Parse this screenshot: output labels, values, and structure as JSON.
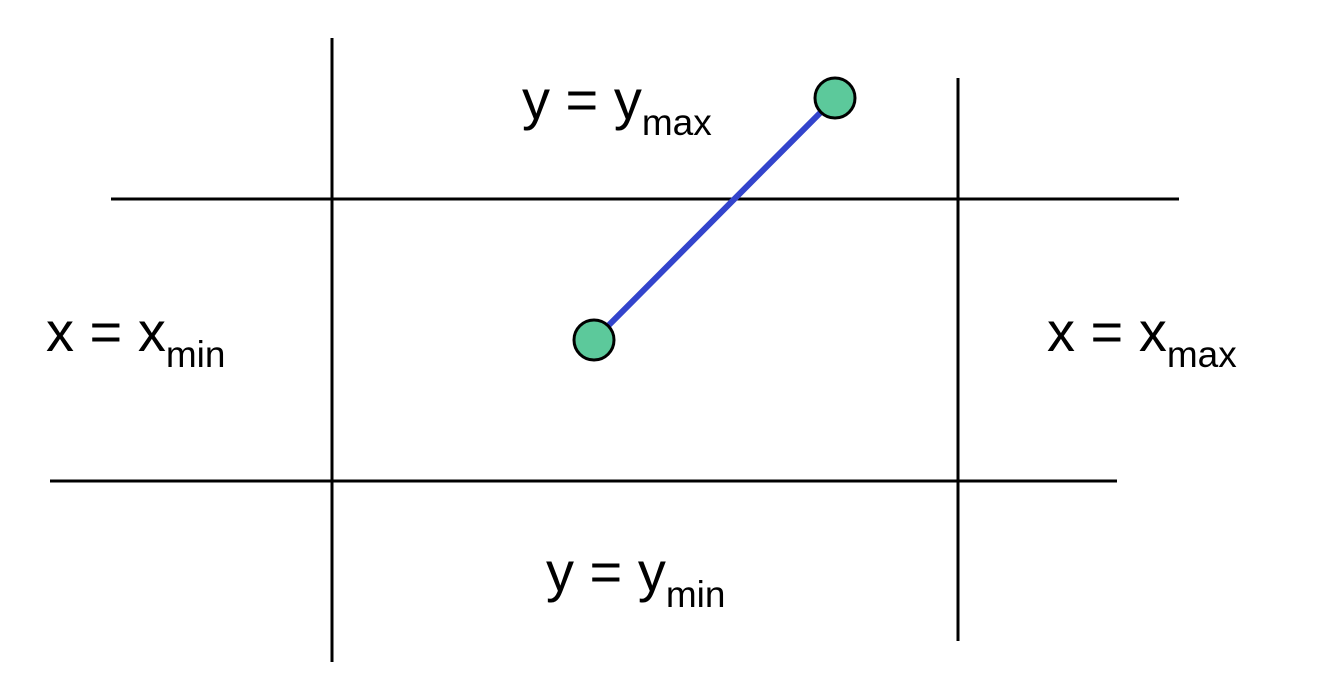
{
  "labels": {
    "ymax": {
      "lhs": "y = y",
      "sub": "max"
    },
    "ymin": {
      "lhs": "y = y",
      "sub": "min"
    },
    "xmin": {
      "lhs": "x = x",
      "sub": "min"
    },
    "xmax": {
      "lhs": "x = x",
      "sub": "max"
    }
  },
  "colors": {
    "lines": "#000000",
    "segment": "#3344cc",
    "endpoint_fill": "#5cc99b"
  }
}
